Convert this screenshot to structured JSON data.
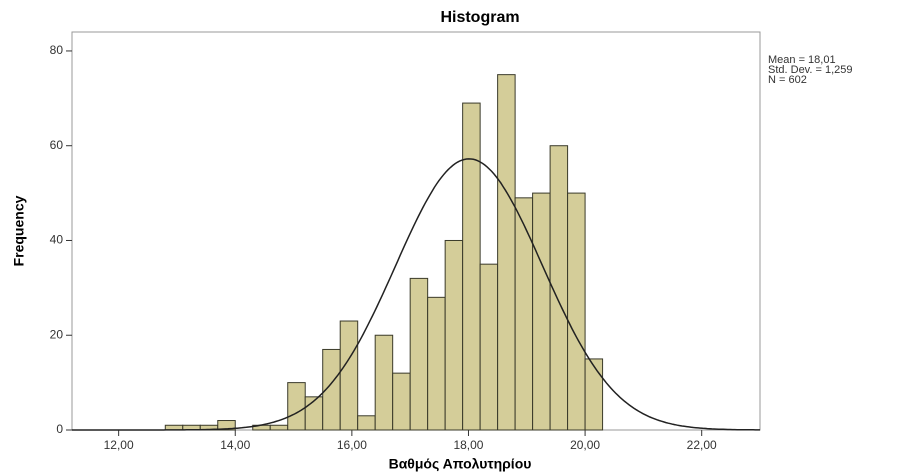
{
  "chart_data": {
    "type": "histogram",
    "title": "Histogram",
    "x_label": "Βαθμός Απολυτηρίου",
    "y_label": "Frequency",
    "stats": [
      "Mean = 18,01",
      "Std. Dev. = 1,259",
      "N = 602"
    ],
    "mean": 18.01,
    "std_dev": 1.259,
    "n": 602,
    "bins": [
      12.8,
      13.1,
      13.4,
      13.7,
      14.0,
      14.3,
      14.6,
      14.9,
      15.2,
      15.5,
      15.8,
      16.1,
      16.4,
      16.7,
      17.0,
      17.3,
      17.6,
      17.9,
      18.2,
      18.5,
      18.8,
      19.1,
      19.4,
      19.7,
      20.0,
      20.3
    ],
    "values": [
      1,
      1,
      1,
      2,
      0,
      1,
      1,
      10,
      7,
      17,
      23,
      3,
      20,
      12,
      32,
      28,
      40,
      69,
      35,
      75,
      49,
      50,
      60,
      50,
      15
    ],
    "color": "#d4cd99",
    "edge_color": "#3a3a2a",
    "curve_color": "#222222",
    "xlim": [
      11.2,
      23.0
    ],
    "xticks": [
      {
        "value": 12,
        "label": "12,00"
      },
      {
        "value": 14,
        "label": "14,00"
      },
      {
        "value": 16,
        "label": "16,00"
      },
      {
        "value": 18,
        "label": "18,00"
      },
      {
        "value": 20,
        "label": "20,00"
      },
      {
        "value": 22,
        "label": "22,00"
      }
    ],
    "ylim": [
      0,
      84
    ],
    "yticks": [
      0,
      20,
      40,
      60,
      80
    ]
  }
}
